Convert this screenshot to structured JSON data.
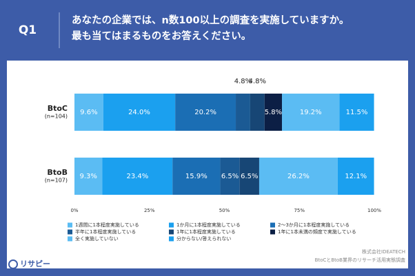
{
  "header": {
    "label": "Q1",
    "question_lines": [
      "あなたの企業では、n数100以上の調査を実施していますか。",
      "最も当てはまるものをお答えください。"
    ]
  },
  "footer": {
    "logo": "リサピー",
    "source_lines": [
      "株式会社IDEATECH",
      "BtoCとBtoB業界のリサーチ活用実態調査"
    ]
  },
  "chart_data": {
    "type": "stacked-bar-horizontal",
    "categories": [
      "BtoC",
      "BtoB"
    ],
    "category_notes": [
      "(n=104)",
      "(n=107)"
    ],
    "series": [
      {
        "name": "1週間に1本程度実施している",
        "color": "#5bbcf3",
        "values": [
          9.6,
          9.3
        ],
        "value_labels": [
          "9.6%",
          "9.3%"
        ]
      },
      {
        "name": "1か月に1本程度実施している",
        "color": "#1ba0ef",
        "values": [
          24.0,
          23.4
        ],
        "value_labels": [
          "24.0%",
          "23.4%"
        ]
      },
      {
        "name": "2～3か月に1本程度実施している",
        "color": "#1b6eb4",
        "values": [
          20.2,
          15.9
        ],
        "value_labels": [
          "20.2%",
          "15.9%"
        ]
      },
      {
        "name": "半年に1本程度実施している",
        "color": "#1b5a94",
        "values": [
          4.8,
          6.5
        ],
        "value_labels": [
          "4.8%",
          "6.5%"
        ]
      },
      {
        "name": "1年に1本程度実施している",
        "color": "#174675",
        "values": [
          4.8,
          6.5
        ],
        "value_labels": [
          "4.8%",
          "6.5%"
        ]
      },
      {
        "name": "1年に1本未満の頻度で実施している",
        "color": "#0c1f45",
        "values": [
          5.8,
          null
        ],
        "value_labels": [
          "5.8%",
          null
        ]
      },
      {
        "name": "全く実施していない",
        "color": "#5bbcf3",
        "values": [
          19.2,
          26.2
        ],
        "value_labels": [
          "19.2%",
          "26.2%"
        ]
      },
      {
        "name": "分からない/答えられない",
        "color": "#1ba0ef",
        "values": [
          11.5,
          12.1
        ],
        "value_labels": [
          "11.5%",
          "12.1%"
        ]
      }
    ],
    "xlim": [
      0,
      100
    ],
    "xticks": [
      {
        "value": 0,
        "label": "0%"
      },
      {
        "value": 25,
        "label": "25%"
      },
      {
        "value": 50,
        "label": "50%"
      },
      {
        "value": 75,
        "label": "75%"
      },
      {
        "value": 100,
        "label": "100%"
      }
    ]
  }
}
